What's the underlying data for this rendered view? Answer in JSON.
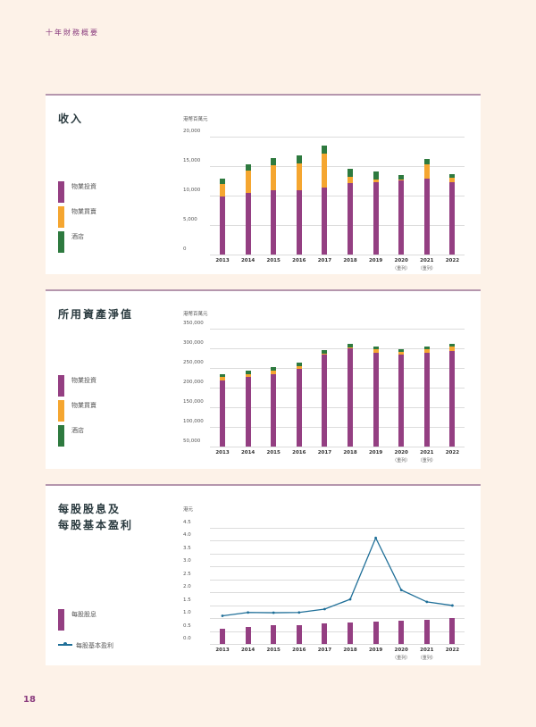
{
  "header": {
    "title": "十年財務概要"
  },
  "page_number": "18",
  "colors": {
    "property_investment": "#943f82",
    "property_trading": "#f5a630",
    "hotels": "#2e7a3f",
    "eps_line": "#1f6f98",
    "dps_bar": "#943f82",
    "accent": "#8a3c7e"
  },
  "years": [
    "2013",
    "2014",
    "2015",
    "2016",
    "2017",
    "2018",
    "2019",
    "2020",
    "2021",
    "2022"
  ],
  "year_sublabels": [
    "",
    "",
    "",
    "",
    "",
    "",
    "",
    "（重列）",
    "（重列）",
    ""
  ],
  "revenue": {
    "title": "收入",
    "unit": "港幣百萬元",
    "legend": [
      "物業投資",
      "物業買賣",
      "酒店"
    ],
    "yticks": [
      "20,000",
      "15,000",
      "10,000",
      "5,000",
      "0"
    ]
  },
  "net_assets": {
    "title": "所用資產淨值",
    "unit": "港幣百萬元",
    "legend": [
      "物業投資",
      "物業買賣",
      "酒店"
    ],
    "yticks": [
      "350,000",
      "300,000",
      "250,000",
      "200,000",
      "150,000",
      "100,000",
      "50,000"
    ]
  },
  "per_share": {
    "title_line1": "每股股息及",
    "title_line2": "每股基本盈利",
    "unit": "港元",
    "legend": [
      "每股股息",
      "每股基本盈利"
    ],
    "yticks": [
      "4.5",
      "4.0",
      "3.5",
      "3.0",
      "2.5",
      "2.0",
      "1.5",
      "1.0",
      "0.5",
      "0.0"
    ]
  },
  "chart_data": [
    {
      "type": "bar",
      "stacked": true,
      "title": "收入",
      "ylabel": "港幣百萬元",
      "categories": [
        "2013",
        "2014",
        "2015",
        "2016",
        "2017",
        "2018",
        "2019",
        "2020 (重列)",
        "2021 (重列)",
        "2022"
      ],
      "series": [
        {
          "name": "物業投資",
          "values": [
            9800,
            10400,
            10900,
            10900,
            11300,
            12100,
            12300,
            12600,
            12900,
            12200
          ]
        },
        {
          "name": "物業買賣",
          "values": [
            2200,
            3900,
            4300,
            4600,
            5800,
            1100,
            500,
            200,
            2400,
            900
          ]
        },
        {
          "name": "酒店",
          "values": [
            900,
            1000,
            1200,
            1300,
            1400,
            1400,
            1300,
            700,
            900,
            600
          ]
        }
      ],
      "ylim": [
        0,
        20000
      ],
      "grid": true,
      "legend_position": "left"
    },
    {
      "type": "bar",
      "stacked": true,
      "title": "所用資產淨值",
      "ylabel": "港幣百萬元",
      "categories": [
        "2013",
        "2014",
        "2015",
        "2016",
        "2017",
        "2018",
        "2019",
        "2020 (重列)",
        "2021 (重列)",
        "2022"
      ],
      "series": [
        {
          "name": "物業投資",
          "values": [
            218000,
            227000,
            235000,
            248000,
            283000,
            300000,
            288000,
            283000,
            288000,
            293000
          ]
        },
        {
          "name": "物業買賣",
          "values": [
            10000,
            8000,
            9000,
            7000,
            4000,
            3000,
            9000,
            8000,
            10000,
            12000
          ]
        },
        {
          "name": "酒店",
          "values": [
            7000,
            8000,
            8000,
            8000,
            8000,
            9000,
            8000,
            7000,
            7000,
            7000
          ]
        }
      ],
      "ylim": [
        50000,
        350000
      ],
      "grid": true,
      "legend_position": "left"
    },
    {
      "type": "bar+line",
      "title": "每股股息及每股基本盈利",
      "ylabel": "港元",
      "categories": [
        "2013",
        "2014",
        "2015",
        "2016",
        "2017",
        "2018",
        "2019",
        "2020 (重列)",
        "2021 (重列)",
        "2022"
      ],
      "series": [
        {
          "name": "每股股息",
          "type": "bar",
          "values": [
            0.59,
            0.66,
            0.71,
            0.71,
            0.78,
            0.84,
            0.88,
            0.91,
            0.94,
            1.0
          ]
        },
        {
          "name": "每股基本盈利",
          "type": "line",
          "values": [
            1.09,
            1.22,
            1.21,
            1.22,
            1.35,
            1.73,
            4.11,
            2.09,
            1.63,
            1.49
          ]
        }
      ],
      "ylim": [
        0,
        4.5
      ],
      "grid": true,
      "legend_position": "left"
    }
  ]
}
